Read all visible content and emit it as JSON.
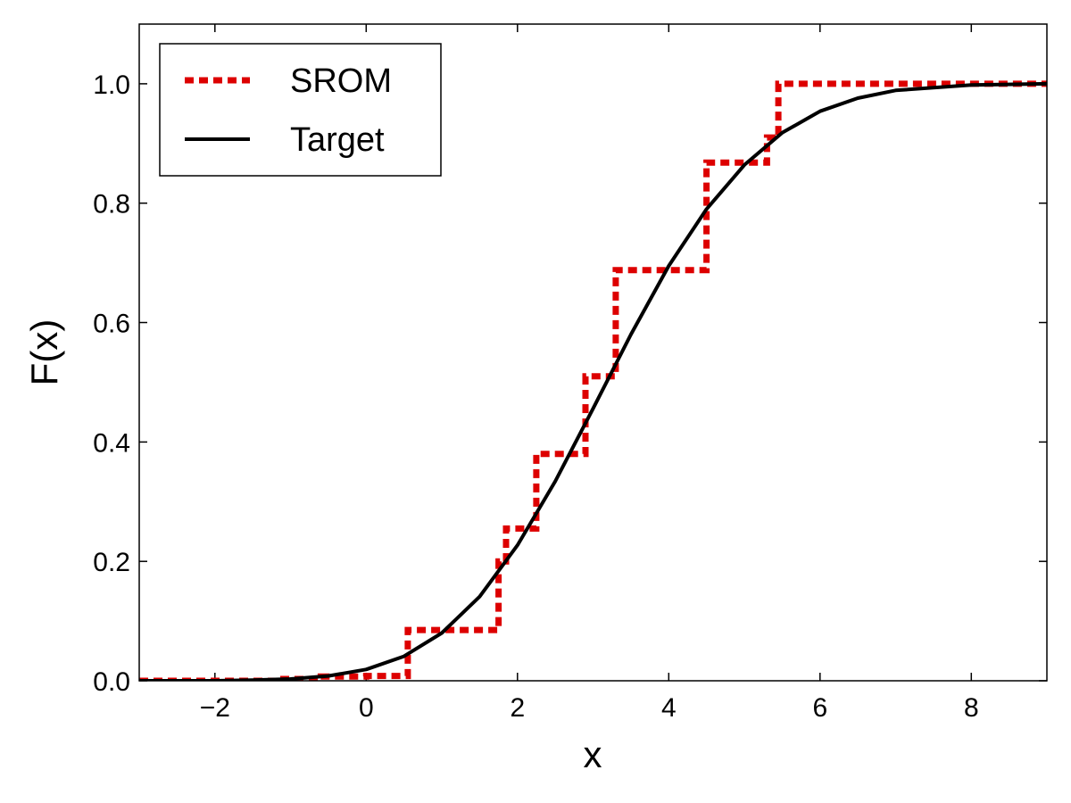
{
  "chart_data": {
    "type": "line",
    "title": "",
    "xlabel": "x",
    "ylabel": "F(x)",
    "xlim": [
      -3,
      9
    ],
    "ylim": [
      0,
      1.1
    ],
    "xticks": [
      -2,
      0,
      2,
      4,
      6,
      8
    ],
    "xtick_labels": [
      "−2",
      "0",
      "2",
      "4",
      "6",
      "8"
    ],
    "yticks": [
      0.0,
      0.2,
      0.4,
      0.6,
      0.8,
      1.0
    ],
    "ytick_labels": [
      "0.0",
      "0.2",
      "0.4",
      "0.6",
      "0.8",
      "1.0"
    ],
    "grid": false,
    "legend_position": "top-left",
    "series": [
      {
        "name": "SROM",
        "style": "dotted-step",
        "color": "#dd0000",
        "x": [
          -3,
          -1.2,
          -0.6,
          0.0,
          0.55,
          1.75,
          1.85,
          2.25,
          2.9,
          3.3,
          4.5,
          5.3,
          5.45,
          9
        ],
        "values": [
          0.0,
          0.003,
          0.007,
          0.008,
          0.085,
          0.2,
          0.255,
          0.38,
          0.51,
          0.688,
          0.868,
          0.91,
          1.0,
          1.0
        ]
      },
      {
        "name": "Target",
        "style": "solid",
        "color": "#000000",
        "x": [
          -3,
          -2,
          -1.5,
          -1,
          -0.5,
          0,
          0.5,
          1,
          1.5,
          2,
          2.5,
          3,
          3.5,
          4,
          4.5,
          5,
          5.5,
          6,
          6.5,
          7,
          8,
          9
        ],
        "values": [
          0.0,
          0.0,
          0.001,
          0.003,
          0.008,
          0.019,
          0.041,
          0.08,
          0.141,
          0.227,
          0.334,
          0.456,
          0.58,
          0.695,
          0.79,
          0.864,
          0.918,
          0.954,
          0.976,
          0.989,
          0.998,
          1.0
        ]
      }
    ]
  }
}
